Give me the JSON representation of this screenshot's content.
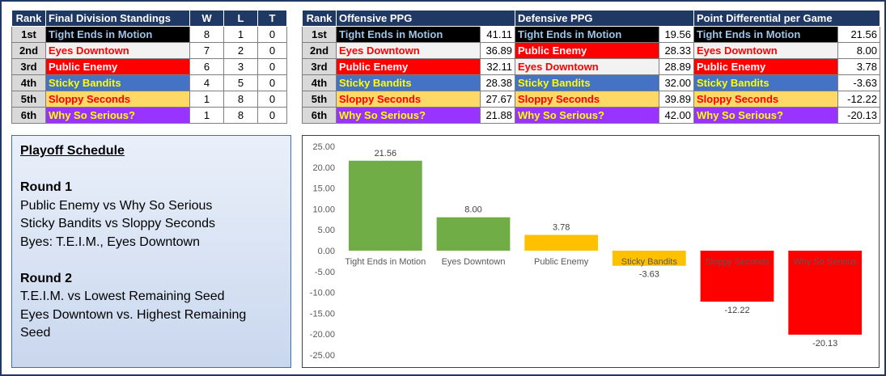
{
  "standings": {
    "headers": [
      "Rank",
      "Final Division Standings",
      "W",
      "L",
      "T"
    ],
    "rows": [
      {
        "rank": "1st",
        "team": "Tight Ends in Motion",
        "style": "t-black",
        "w": "8",
        "l": "1",
        "t": "0"
      },
      {
        "rank": "2nd",
        "team": "Eyes Downtown",
        "style": "t-white",
        "w": "7",
        "l": "2",
        "t": "0"
      },
      {
        "rank": "3rd",
        "team": "Public Enemy",
        "style": "t-red",
        "w": "6",
        "l": "3",
        "t": "0"
      },
      {
        "rank": "4th",
        "team": "Sticky Bandits",
        "style": "t-blue",
        "w": "4",
        "l": "5",
        "t": "0"
      },
      {
        "rank": "5th",
        "team": "Sloppy Seconds",
        "style": "t-yellow",
        "w": "1",
        "l": "8",
        "t": "0"
      },
      {
        "rank": "6th",
        "team": "Why So Serious?",
        "style": "t-purple",
        "w": "1",
        "l": "8",
        "t": "0"
      }
    ]
  },
  "stats": {
    "headers": [
      "Rank",
      "Offensive PPG",
      "Defensive PPG",
      "Point Differential per Game"
    ],
    "rows": [
      {
        "rank": "1st",
        "off_team": "Tight Ends in Motion",
        "off_style": "t-black",
        "off_val": "41.11",
        "def_team": "Tight Ends in Motion",
        "def_style": "t-black",
        "def_val": "19.56",
        "diff_team": "Tight Ends in Motion",
        "diff_style": "t-black",
        "diff_val": "21.56"
      },
      {
        "rank": "2nd",
        "off_team": "Eyes Downtown",
        "off_style": "t-white",
        "off_val": "36.89",
        "def_team": "Public Enemy",
        "def_style": "t-red",
        "def_val": "28.33",
        "diff_team": "Eyes Downtown",
        "diff_style": "t-white",
        "diff_val": "8.00"
      },
      {
        "rank": "3rd",
        "off_team": "Public Enemy",
        "off_style": "t-red",
        "off_val": "32.11",
        "def_team": "Eyes Downtown",
        "def_style": "t-white",
        "def_val": "28.89",
        "diff_team": "Public Enemy",
        "diff_style": "t-red",
        "diff_val": "3.78"
      },
      {
        "rank": "4th",
        "off_team": "Sticky Bandits",
        "off_style": "t-blue",
        "off_val": "28.38",
        "def_team": "Sticky Bandits",
        "def_style": "t-blue",
        "def_val": "32.00",
        "diff_team": "Sticky Bandits",
        "diff_style": "t-blue",
        "diff_val": "-3.63"
      },
      {
        "rank": "5th",
        "off_team": "Sloppy Seconds",
        "off_style": "t-yellow",
        "off_val": "27.67",
        "def_team": "Sloppy Seconds",
        "def_style": "t-yellow",
        "def_val": "39.89",
        "diff_team": "Sloppy Seconds",
        "diff_style": "t-yellow",
        "diff_val": "-12.22"
      },
      {
        "rank": "6th",
        "off_team": "Why So Serious?",
        "off_style": "t-purple",
        "off_val": "21.88",
        "def_team": "Why So Serious?",
        "def_style": "t-purple",
        "def_val": "42.00",
        "diff_team": "Why So Serious?",
        "diff_style": "t-purple",
        "diff_val": "-20.13"
      }
    ]
  },
  "playoff": {
    "title": "Playoff Schedule",
    "round1_title": "Round 1",
    "round1_lines": [
      "Public Enemy vs Why So Serious",
      "Sticky Bandits vs Sloppy Seconds",
      "Byes: T.E.I.M., Eyes Downtown"
    ],
    "round2_title": "Round 2",
    "round2_lines": [
      "T.E.I.M. vs Lowest Remaining Seed",
      "Eyes Downtown vs. Highest Remaining",
      "Seed"
    ]
  },
  "chart_data": {
    "type": "bar",
    "categories": [
      "Tight Ends in Motion",
      "Eyes Downtown",
      "Public Enemy",
      "Sticky Bandits",
      "Sloppy Seconds",
      "Why So Serious"
    ],
    "values": [
      21.56,
      8.0,
      3.78,
      -3.63,
      -12.22,
      -20.13
    ],
    "data_labels": [
      "21.56",
      "8.00",
      "3.78",
      "-3.63",
      "-12.22",
      "-20.13"
    ],
    "bar_colors": [
      "#70ad47",
      "#70ad47",
      "#ffc000",
      "#ffc000",
      "#ff0000",
      "#ff0000"
    ],
    "ylim": [
      -25,
      25
    ],
    "y_ticks": [
      25,
      20,
      15,
      10,
      5,
      0,
      -5,
      -10,
      -15,
      -20,
      -25
    ],
    "y_tick_labels": [
      "25.00",
      "20.00",
      "15.00",
      "10.00",
      "5.00",
      "0.00",
      "-5.00",
      "-10.00",
      "-15.00",
      "-20.00",
      "-25.00"
    ],
    "title": "",
    "xlabel": "",
    "ylabel": "",
    "grid": false,
    "legend": "none"
  }
}
